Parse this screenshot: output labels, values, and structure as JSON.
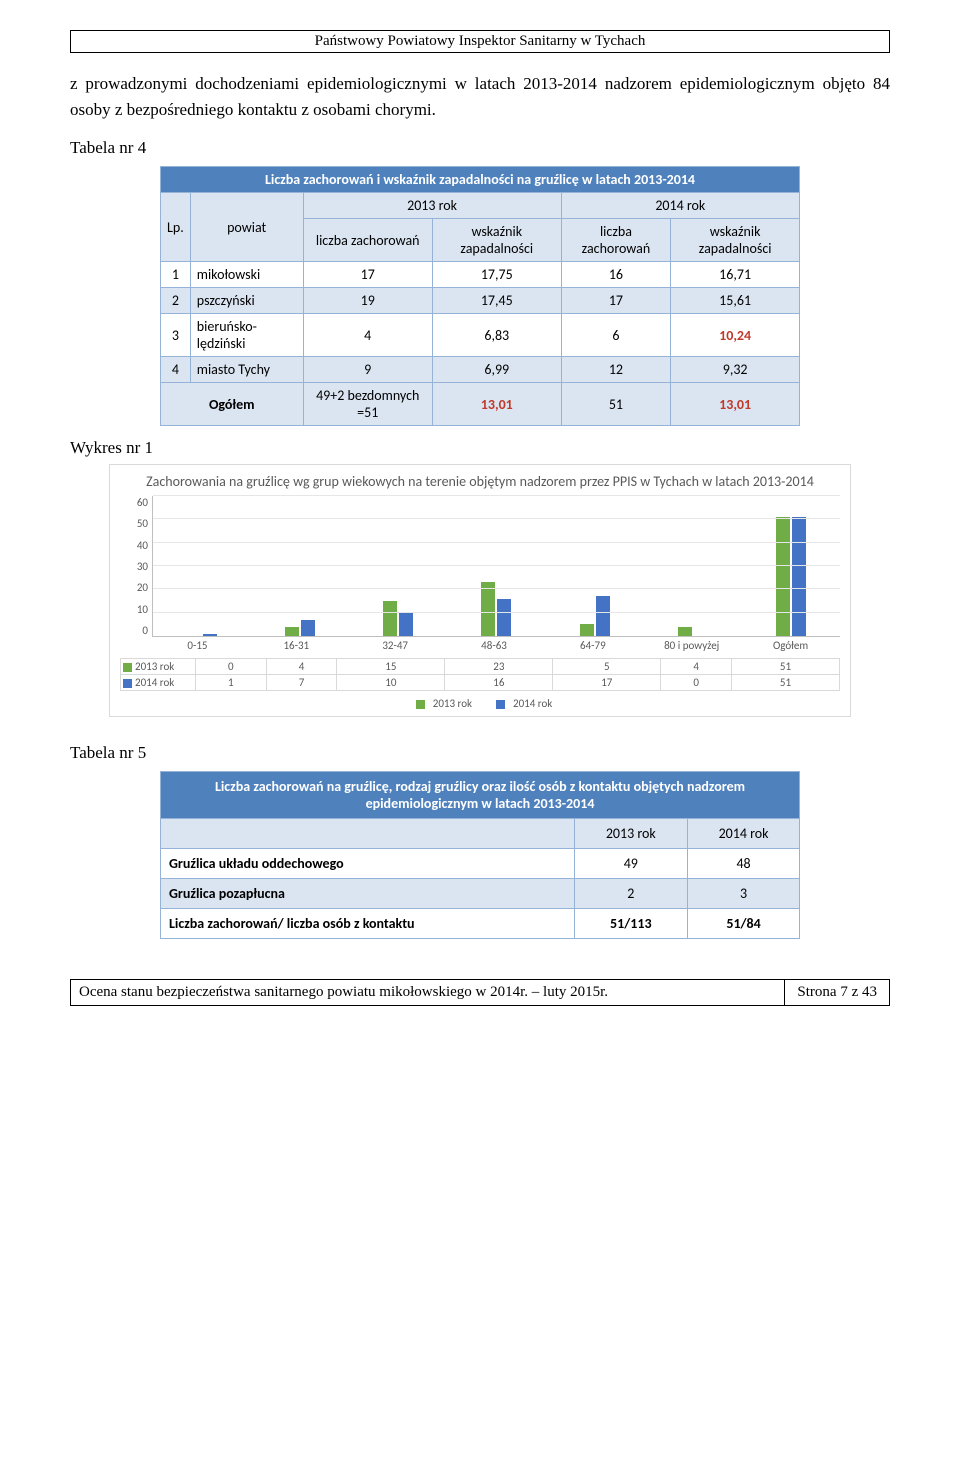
{
  "header": "Państwowy Powiatowy Inspektor Sanitarny w Tychach",
  "para1": "z prowadzonymi dochodzeniami epidemiologicznymi w latach 2013-2014 nadzorem epidemiologicznym objęto 84 osoby z bezpośredniego kontaktu z osobami chorymi.",
  "tabela4_label": "Tabela nr 4",
  "table4": {
    "title": "Liczba zachorowań i wskaźnik zapadalności na gruźlicę w latach 2013-2014",
    "lp": "Lp.",
    "powiat": "powiat",
    "y2013": "2013 rok",
    "y2014": "2014 rok",
    "liczba": "liczba zachorowań",
    "wskaznik": "wskaźnik zapadalności",
    "rows": [
      {
        "n": "1",
        "p": "mikołowski",
        "a": "17",
        "b": "17,75",
        "c": "16",
        "d": "16,71"
      },
      {
        "n": "2",
        "p": "pszczyński",
        "a": "19",
        "b": "17,45",
        "c": "17",
        "d": "15,61"
      },
      {
        "n": "3",
        "p": "bieruńsko-lędziński",
        "a": "4",
        "b": "6,83",
        "c": "6",
        "d": "10,24"
      },
      {
        "n": "4",
        "p": "miasto Tychy",
        "a": "9",
        "b": "6,99",
        "c": "12",
        "d": "9,32"
      }
    ],
    "ogolem_label": "Ogółem",
    "ogolem_a": "49+2 bezdomnych =51",
    "ogolem_b": "13,01",
    "ogolem_c": "51",
    "ogolem_d": "13,01"
  },
  "wykres_label": "Wykres nr 1",
  "chart": {
    "title": "Zachorowania na gruźlicę wg grup wiekowych na terenie objętym nadzorem przez PPIS w Tychach w latach 2013-2014",
    "type": "bar",
    "ylim": [
      0,
      60
    ],
    "ytick_step": 10,
    "yticks": [
      "60",
      "50",
      "40",
      "30",
      "20",
      "10",
      "0"
    ],
    "categories": [
      "0-15",
      "16-31",
      "32-47",
      "48-63",
      "64-79",
      "80 i powyżej",
      "Ogółem"
    ],
    "series": [
      {
        "name": "2013 rok",
        "color": "#71ad47",
        "values": [
          0,
          4,
          15,
          23,
          5,
          4,
          51
        ]
      },
      {
        "name": "2014 rok",
        "color": "#4472c4",
        "values": [
          1,
          7,
          10,
          16,
          17,
          0,
          51
        ]
      }
    ],
    "grid_color": "#e6e6e6",
    "axis_color": "#bfbfbf",
    "text_color": "#595959",
    "background_color": "#ffffff",
    "title_fontsize": 14,
    "label_fontsize": 11
  },
  "tabela5_label": "Tabela nr 5",
  "table5": {
    "title": "Liczba zachorowań na gruźlicę, rodzaj gruźlicy oraz ilość osób z kontaktu objętych nadzorem epidemiologicznym w latach 2013-2014",
    "col2013": "2013 rok",
    "col2014": "2014 rok",
    "rows": [
      {
        "label": "Gruźlica układu oddechowego",
        "a": "49",
        "b": "48"
      },
      {
        "label": "Gruźlica pozapłucna",
        "a": "2",
        "b": "3"
      },
      {
        "label": "Liczba zachorowań/ liczba osób z kontaktu",
        "a": "51/113",
        "b": "51/84"
      }
    ]
  },
  "footer": {
    "left": "Ocena stanu bezpieczeństwa sanitarnego powiatu mikołowskiego w 2014r. – luty 2015r.",
    "right": "Strona 7 z 43"
  }
}
